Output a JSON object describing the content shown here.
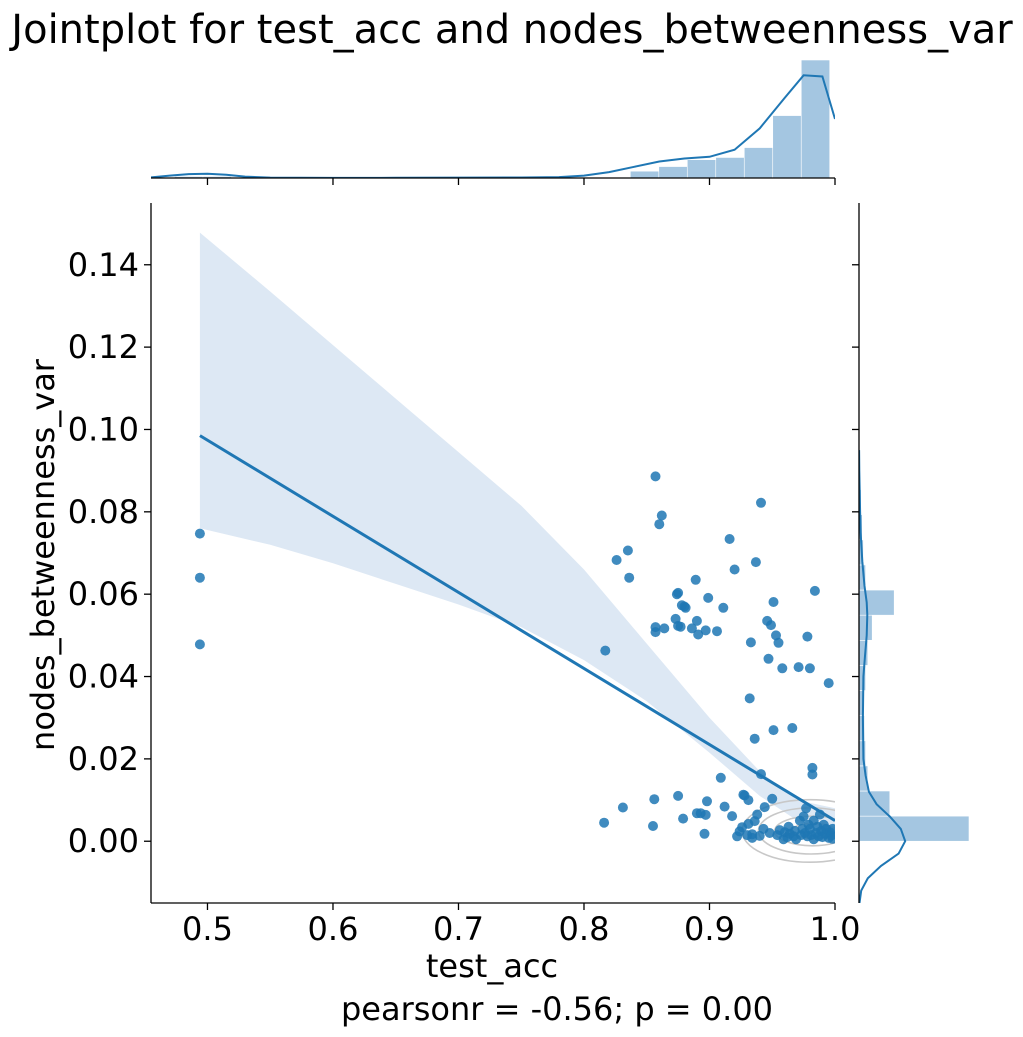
{
  "chart_data": {
    "type": "scatter",
    "title": "Jointplot for test_acc and nodes_betweenness_var",
    "xlabel": "test_acc",
    "ylabel": "nodes_betweenness_var",
    "annotation": "pearsonr = -0.56; p = 0.00",
    "xlim": [
      0.455,
      1.0
    ],
    "ylim": [
      -0.015,
      0.155
    ],
    "x_ticks": [
      {
        "value": 0.5,
        "label": "0.5"
      },
      {
        "value": 0.6,
        "label": "0.6"
      },
      {
        "value": 0.7,
        "label": "0.7"
      },
      {
        "value": 0.8,
        "label": "0.8"
      },
      {
        "value": 0.9,
        "label": "0.9"
      },
      {
        "value": 1.0,
        "label": "1.0"
      }
    ],
    "y_ticks": [
      {
        "value": 0.0,
        "label": "0.00"
      },
      {
        "value": 0.02,
        "label": "0.02"
      },
      {
        "value": 0.04,
        "label": "0.04"
      },
      {
        "value": 0.06,
        "label": "0.06"
      },
      {
        "value": 0.08,
        "label": "0.08"
      },
      {
        "value": 0.1,
        "label": "0.10"
      },
      {
        "value": 0.12,
        "label": "0.12"
      },
      {
        "value": 0.14,
        "label": "0.14"
      }
    ],
    "grid": false,
    "colors": {
      "points": "#1f77b4",
      "regression_line": "#1f77b4",
      "confidence_band": "#dde8f4",
      "histogram": "#a4c6e1",
      "kde": "#1f77b4",
      "contour": "#c8c8c8"
    },
    "points": [
      [
        0.494,
        0.0747
      ],
      [
        0.494,
        0.064
      ],
      [
        0.494,
        0.0478
      ],
      [
        0.817,
        0.0463
      ],
      [
        0.816,
        0.0045
      ],
      [
        0.826,
        0.0683
      ],
      [
        0.831,
        0.0082
      ],
      [
        0.835,
        0.0706
      ],
      [
        0.836,
        0.064
      ],
      [
        0.855,
        0.0037
      ],
      [
        0.856,
        0.0102
      ],
      [
        0.857,
        0.0886
      ],
      [
        0.857,
        0.052
      ],
      [
        0.857,
        0.0508
      ],
      [
        0.86,
        0.077
      ],
      [
        0.862,
        0.0791
      ],
      [
        0.864,
        0.0517
      ],
      [
        0.873,
        0.054
      ],
      [
        0.874,
        0.06
      ],
      [
        0.875,
        0.0603
      ],
      [
        0.875,
        0.0523
      ],
      [
        0.875,
        0.011
      ],
      [
        0.877,
        0.0521
      ],
      [
        0.878,
        0.0573
      ],
      [
        0.879,
        0.0055
      ],
      [
        0.88,
        0.057
      ],
      [
        0.881,
        0.0567
      ],
      [
        0.886,
        0.0517
      ],
      [
        0.889,
        0.0635
      ],
      [
        0.89,
        0.0068
      ],
      [
        0.89,
        0.0535
      ],
      [
        0.891,
        0.0502
      ],
      [
        0.893,
        0.0068
      ],
      [
        0.896,
        0.0018
      ],
      [
        0.897,
        0.0512
      ],
      [
        0.897,
        0.0064
      ],
      [
        0.898,
        0.0097
      ],
      [
        0.899,
        0.0591
      ],
      [
        0.906,
        0.051
      ],
      [
        0.909,
        0.0154
      ],
      [
        0.911,
        0.0567
      ],
      [
        0.912,
        0.0084
      ],
      [
        0.916,
        0.0734
      ],
      [
        0.918,
        0.0061
      ],
      [
        0.92,
        0.066
      ],
      [
        0.922,
        0.0012
      ],
      [
        0.924,
        0.0024
      ],
      [
        0.926,
        0.0034
      ],
      [
        0.927,
        0.0113
      ],
      [
        0.928,
        0.0111
      ],
      [
        0.93,
        0.0015
      ],
      [
        0.931,
        0.01
      ],
      [
        0.931,
        0.0042
      ],
      [
        0.932,
        0.0347
      ],
      [
        0.933,
        0.0483
      ],
      [
        0.934,
        0.0008
      ],
      [
        0.934,
        0.0017
      ],
      [
        0.936,
        0.0249
      ],
      [
        0.936,
        0.0049
      ],
      [
        0.937,
        0.0678
      ],
      [
        0.938,
        0.0065
      ],
      [
        0.94,
        0.0013
      ],
      [
        0.941,
        0.0822
      ],
      [
        0.941,
        0.0163
      ],
      [
        0.943,
        0.003
      ],
      [
        0.944,
        0.0083
      ],
      [
        0.946,
        0.0535
      ],
      [
        0.947,
        0.0443
      ],
      [
        0.948,
        0.002
      ],
      [
        0.949,
        0.0525
      ],
      [
        0.95,
        0.0103
      ],
      [
        0.951,
        0.027
      ],
      [
        0.951,
        0.0581
      ],
      [
        0.953,
        0.05
      ],
      [
        0.954,
        0.0015
      ],
      [
        0.955,
        0.0482
      ],
      [
        0.956,
        0.0027
      ],
      [
        0.958,
        0.042
      ],
      [
        0.959,
        0.0005
      ],
      [
        0.96,
        0.0022
      ],
      [
        0.962,
        0.001
      ],
      [
        0.963,
        0.0035
      ],
      [
        0.964,
        0.0018
      ],
      [
        0.966,
        0.0275
      ],
      [
        0.967,
        0.0012
      ],
      [
        0.968,
        0.0025
      ],
      [
        0.969,
        0.0005
      ],
      [
        0.971,
        0.0423
      ],
      [
        0.972,
        0.005
      ],
      [
        0.973,
        0.0015
      ],
      [
        0.974,
        0.003
      ],
      [
        0.975,
        0.006
      ],
      [
        0.976,
        0.002
      ],
      [
        0.977,
        0.008
      ],
      [
        0.978,
        0.0497
      ],
      [
        0.978,
        0.0012
      ],
      [
        0.979,
        0.004
      ],
      [
        0.98,
        0.042
      ],
      [
        0.98,
        0.003
      ],
      [
        0.981,
        0.0015
      ],
      [
        0.982,
        0.0178
      ],
      [
        0.982,
        0.0162
      ],
      [
        0.983,
        0.005
      ],
      [
        0.983,
        0.0005
      ],
      [
        0.984,
        0.0608
      ],
      [
        0.985,
        0.002
      ],
      [
        0.986,
        0.0035
      ],
      [
        0.987,
        0.0012
      ],
      [
        0.988,
        0.0065
      ],
      [
        0.989,
        0.0025
      ],
      [
        0.99,
        0.001
      ],
      [
        0.991,
        0.004
      ],
      [
        0.992,
        0.0018
      ],
      [
        0.993,
        0.003
      ],
      [
        0.995,
        0.0384
      ],
      [
        0.995,
        0.0008
      ],
      [
        0.996,
        0.0022
      ],
      [
        0.997,
        0.0014
      ],
      [
        0.998,
        0.003
      ],
      [
        0.998,
        0.0006
      ]
    ],
    "regression": {
      "x0": 0.494,
      "y0": 0.0985,
      "x1": 1.0,
      "y1": 0.005
    },
    "confidence_band": {
      "x": [
        0.494,
        0.55,
        0.6,
        0.65,
        0.7,
        0.75,
        0.8,
        0.85,
        0.9,
        0.94,
        0.97,
        1.0
      ],
      "upper": [
        0.1478,
        0.1335,
        0.1205,
        0.1075,
        0.0945,
        0.0815,
        0.066,
        0.048,
        0.03,
        0.017,
        0.01,
        0.008
      ],
      "lower": [
        0.076,
        0.072,
        0.0675,
        0.0625,
        0.0575,
        0.052,
        0.044,
        0.034,
        0.0215,
        0.011,
        0.005,
        0.001
      ]
    },
    "x_histogram": {
      "bin_edges": [
        0.451,
        0.4737,
        0.4964,
        0.5191,
        0.5418,
        0.5645,
        0.5872,
        0.6099,
        0.6326,
        0.6553,
        0.678,
        0.7007,
        0.7234,
        0.7461,
        0.7688,
        0.7915,
        0.8142,
        0.8369,
        0.8596,
        0.8823,
        0.905,
        0.9277,
        0.9504,
        0.9731,
        0.9958
      ],
      "densities": [
        0,
        0.13,
        0.13,
        0,
        0,
        0,
        0,
        0,
        0,
        0,
        0,
        0,
        0,
        0,
        0,
        0,
        0,
        0.58,
        0.97,
        1.55,
        1.74,
        2.58,
        5.29,
        10.0
      ],
      "ymax": 10.0
    },
    "x_kde": {
      "x": [
        0.455,
        0.47,
        0.485,
        0.5,
        0.515,
        0.53,
        0.55,
        0.6,
        0.65,
        0.7,
        0.75,
        0.78,
        0.8,
        0.82,
        0.84,
        0.86,
        0.88,
        0.9,
        0.92,
        0.94,
        0.96,
        0.975,
        0.99,
        1.0
      ],
      "y": [
        0.05,
        0.2,
        0.33,
        0.36,
        0.28,
        0.12,
        0.03,
        0.01,
        0.02,
        0.03,
        0.04,
        0.08,
        0.2,
        0.5,
        0.95,
        1.4,
        1.65,
        1.8,
        2.4,
        4.2,
        6.8,
        8.7,
        8.6,
        5.0
      ],
      "ymax": 10.0
    },
    "y_histogram": {
      "bin_edges": [
        0.0,
        0.0061,
        0.0122,
        0.0183,
        0.0244,
        0.0305,
        0.0366,
        0.0427,
        0.0488,
        0.0549,
        0.061,
        0.0671,
        0.0732,
        0.0793,
        0.0854
      ],
      "densities": [
        100,
        28,
        8,
        6,
        5,
        4,
        6,
        8,
        12,
        32,
        6,
        4,
        3,
        2
      ],
      "xmax": 100
    },
    "y_kde": {
      "y": [
        -0.015,
        -0.012,
        -0.009,
        -0.006,
        -0.003,
        0.0,
        0.003,
        0.006,
        0.009,
        0.012,
        0.016,
        0.02,
        0.03,
        0.04,
        0.045,
        0.05,
        0.055,
        0.058,
        0.062,
        0.068,
        0.075,
        0.08,
        0.085,
        0.09,
        0.095
      ],
      "x": [
        0.5,
        2,
        8,
        20,
        36,
        42,
        38,
        28,
        16,
        9,
        6,
        4,
        3.5,
        4,
        5.5,
        7,
        7.5,
        7,
        5,
        3,
        1.5,
        1,
        0.6,
        0.3,
        0.1
      ],
      "xmax": 100
    },
    "contours": [
      {
        "cx": 0.983,
        "cy": 0.0025,
        "rx": 0.018,
        "ry": 0.0018
      },
      {
        "cx": 0.982,
        "cy": 0.0025,
        "rx": 0.03,
        "ry": 0.0036
      },
      {
        "cx": 0.981,
        "cy": 0.0025,
        "rx": 0.042,
        "ry": 0.0056
      },
      {
        "cx": 0.98,
        "cy": 0.0025,
        "rx": 0.054,
        "ry": 0.0076
      }
    ]
  }
}
